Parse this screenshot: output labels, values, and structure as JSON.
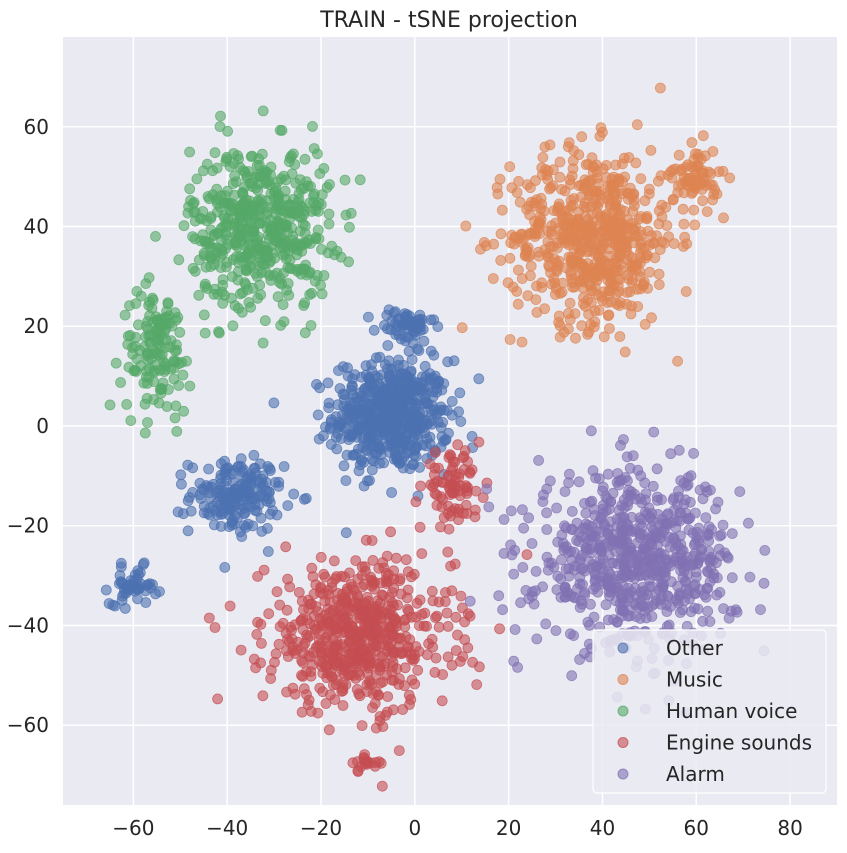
{
  "chart_data": {
    "type": "scatter",
    "title": "TRAIN - tSNE projection",
    "xlabel": "",
    "ylabel": "",
    "xlim": [
      -75,
      90
    ],
    "ylim": [
      -76,
      78
    ],
    "xticks": [
      -60,
      -40,
      -20,
      0,
      20,
      40,
      60,
      80
    ],
    "yticks": [
      -60,
      -40,
      -20,
      0,
      20,
      40,
      60
    ],
    "xtick_labels": [
      "−60",
      "−40",
      "−20",
      "0",
      "20",
      "40",
      "60",
      "80"
    ],
    "ytick_labels": [
      "−60",
      "−40",
      "−20",
      "0",
      "20",
      "40",
      "60"
    ],
    "grid": true,
    "legend_position": "lower-right",
    "colors": {
      "background": "#eaeaf2",
      "grid": "#ffffff"
    },
    "series": [
      {
        "name": "Other",
        "color": "#4c72b0",
        "clusters": [
          {
            "center": [
              -5,
              2
            ],
            "spread": [
              10,
              9
            ],
            "count": 560
          },
          {
            "center": [
              -38,
              -14
            ],
            "spread": [
              8,
              6
            ],
            "count": 180
          },
          {
            "center": [
              -60,
              -32
            ],
            "spread": [
              4,
              3
            ],
            "count": 50
          },
          {
            "center": [
              -2,
              20
            ],
            "spread": [
              5,
              3
            ],
            "count": 60
          }
        ]
      },
      {
        "name": "Music",
        "color": "#dd8452",
        "clusters": [
          {
            "center": [
              38,
              38
            ],
            "spread": [
              14,
              14
            ],
            "count": 620
          },
          {
            "center": [
              60,
              50
            ],
            "spread": [
              4,
              5
            ],
            "count": 70
          }
        ]
      },
      {
        "name": "Human voice",
        "color": "#55a868",
        "clusters": [
          {
            "center": [
              -33,
              40
            ],
            "spread": [
              12,
              13
            ],
            "count": 520
          },
          {
            "center": [
              -55,
              15
            ],
            "spread": [
              6,
              10
            ],
            "count": 140
          }
        ]
      },
      {
        "name": "Engine sounds",
        "color": "#c44e52",
        "clusters": [
          {
            "center": [
              -12,
              -42
            ],
            "spread": [
              16,
              12
            ],
            "count": 600
          },
          {
            "center": [
              8,
              -12
            ],
            "spread": [
              5,
              5
            ],
            "count": 80
          },
          {
            "center": [
              -10,
              -68
            ],
            "spread": [
              3,
              2
            ],
            "count": 20
          }
        ]
      },
      {
        "name": "Alarm",
        "color": "#8172b3",
        "clusters": [
          {
            "center": [
              47,
              -27
            ],
            "spread": [
              17,
              14
            ],
            "count": 700
          }
        ]
      }
    ]
  }
}
